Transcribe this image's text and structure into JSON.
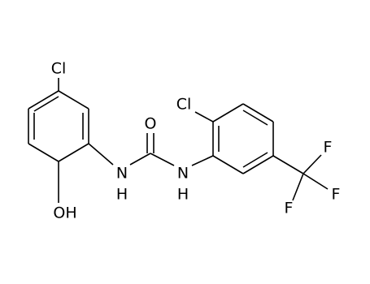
{
  "atoms": [
    "Cl",
    "OH",
    "N",
    "H",
    "O",
    "N",
    "H",
    "Cl",
    "F",
    "F",
    "F"
  ]
}
